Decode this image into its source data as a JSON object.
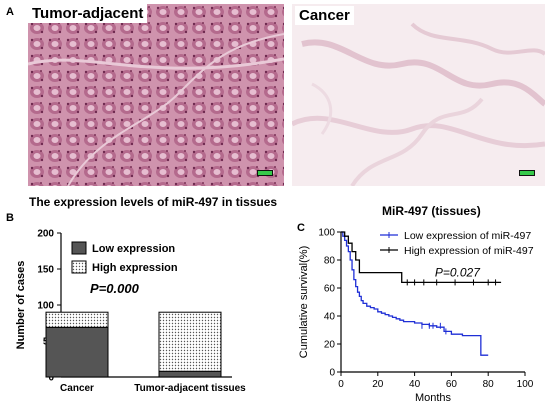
{
  "figure": {
    "panel_a": {
      "letter": "A",
      "left_label": "Tumor-adjacent",
      "right_label": "Cancer"
    },
    "panel_b": {
      "letter": "B"
    },
    "panel_c": {
      "letter": "C"
    }
  },
  "colors": {
    "tumor_adjacent_tissue": "#c98aa6",
    "tumor_adjacent_dark": "#8e3e65",
    "cancer_tissue": "#f6ecef",
    "cancer_lines": "#e3c8d2",
    "scale_bar": "#36c94a",
    "low_bar": "#555555",
    "low_curve": "#1f2fd6",
    "high_curve": "#000000"
  },
  "chart_data": [
    {
      "type": "bar",
      "stacked": true,
      "title": "The expression levels of miR-497 in tissues",
      "ylabel": "Number of cases",
      "xlabel": "",
      "categories": [
        "Cancer",
        "Tumor-adjacent tissues"
      ],
      "series": [
        {
          "name": "Low expression",
          "values": [
            69,
            8
          ]
        },
        {
          "name": "High expression",
          "values": [
            21,
            82
          ]
        }
      ],
      "ylim": [
        0,
        200
      ],
      "yticks": [
        0,
        50,
        100,
        150,
        200
      ],
      "annotation": "P=0.000",
      "legend_position": "top-left"
    },
    {
      "type": "line",
      "title": "MiR-497 (tissues)",
      "xlabel": "Months",
      "ylabel": "Cumulative survival(%)",
      "xlim": [
        0,
        100
      ],
      "ylim": [
        0,
        100
      ],
      "xticks": [
        0,
        20,
        40,
        60,
        80,
        100
      ],
      "yticks": [
        0,
        20,
        40,
        60,
        80,
        100
      ],
      "annotation": "P=0.027",
      "legend_position": "top-right",
      "series": [
        {
          "name": "Low expression of miR-497",
          "x": [
            0,
            1,
            2,
            3,
            4,
            5,
            6,
            7,
            8,
            9,
            10,
            11,
            12,
            14,
            16,
            18,
            20,
            22,
            24,
            26,
            28,
            30,
            32,
            34,
            36,
            40,
            44,
            48,
            52,
            56,
            60,
            66,
            70,
            76,
            76,
            80
          ],
          "y": [
            100,
            97,
            94,
            90,
            86,
            80,
            73,
            66,
            61,
            57,
            54,
            51,
            49,
            47,
            46,
            45,
            43,
            42,
            41,
            40,
            39,
            38,
            37,
            36,
            36,
            35,
            34,
            33,
            32,
            29,
            27,
            26,
            26,
            26,
            12,
            12
          ]
        },
        {
          "name": "High expression of miR-497",
          "x": [
            0,
            2,
            4,
            6,
            8,
            10,
            33,
            33,
            87
          ],
          "y": [
            100,
            97,
            92,
            86,
            80,
            71,
            71,
            64,
            64
          ]
        }
      ]
    }
  ]
}
